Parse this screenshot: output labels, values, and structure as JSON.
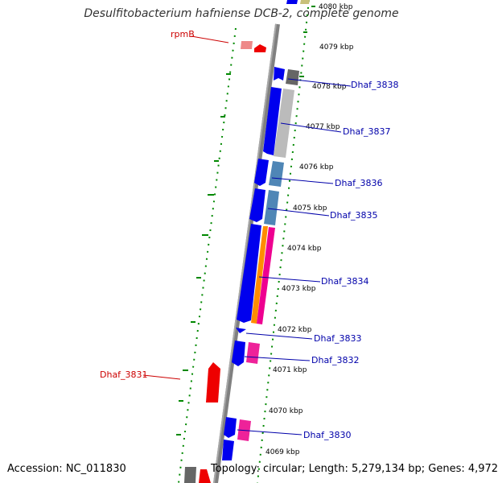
{
  "title": "Desulfitobacterium hafniense DCB-2, complete genome",
  "footer": {
    "accession": "Accession: NC_011830",
    "summary": "Topology: circular; Length: 5,279,134 bp; Genes: 4,972"
  },
  "colors": {
    "plus_strand_gene": "#0000ee",
    "minus_strand_gene": "#ee0000",
    "label_plus": "#0000aa",
    "label_minus": "#cc0000",
    "gc_dots": "#008800",
    "backbone": "#808080"
  },
  "ticks": [
    "4080 kbp",
    "4079 kbp",
    "4078 kbp",
    "4077 kbp",
    "4076 kbp",
    "4075 kbp",
    "4074 kbp",
    "4073 kbp",
    "4072 kbp",
    "4071 kbp",
    "4070 kbp",
    "4069 kbp"
  ],
  "gene_labels_plus": [
    "Dhaf_3838",
    "Dhaf_3837",
    "Dhaf_3836",
    "Dhaf_3835",
    "Dhaf_3834",
    "Dhaf_3833",
    "Dhaf_3832",
    "Dhaf_3830"
  ],
  "gene_labels_minus": [
    "rpmB",
    "Dhaf_3831"
  ]
}
